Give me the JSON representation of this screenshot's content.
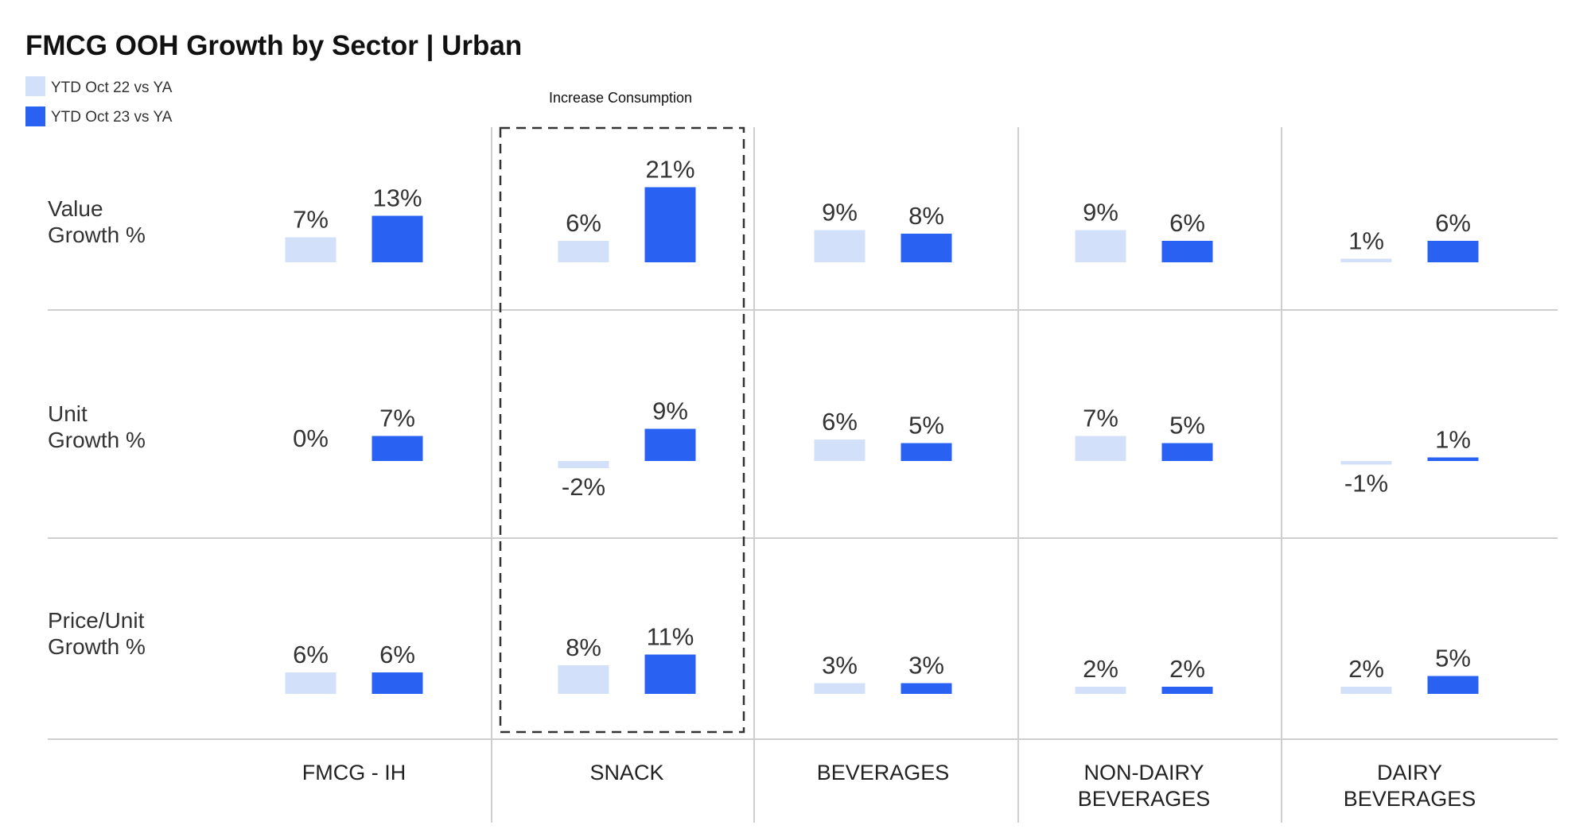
{
  "colors": {
    "ytd22": "#d3e0fa",
    "ytd23": "#2962f2",
    "grid": "#cfcfcf",
    "box": "#333333"
  },
  "chart_data": {
    "type": "bar",
    "title": "FMCG OOH Growth by Sector | Urban",
    "legend": [
      {
        "label": "YTD Oct 22 vs YA",
        "color": "#d3e0fa"
      },
      {
        "label": "YTD Oct 23 vs YA",
        "color": "#2962f2"
      }
    ],
    "legend_position": "top-left",
    "annotation": {
      "text": "Increase Consumption",
      "highlight_category": "SNACK"
    },
    "categories": [
      [
        "FMCG - IH"
      ],
      [
        "SNACK"
      ],
      [
        "BEVERAGES"
      ],
      [
        "NON-DAIRY",
        "BEVERAGES"
      ],
      [
        "DAIRY",
        "BEVERAGES"
      ]
    ],
    "metrics": [
      {
        "label": [
          "Value",
          "Growth %"
        ],
        "series": [
          {
            "name": "YTD Oct 22 vs YA",
            "values": [
              7,
              6,
              9,
              9,
              1
            ],
            "labels": [
              "7%",
              "6%",
              "9%",
              "9%",
              "1%"
            ]
          },
          {
            "name": "YTD Oct 23 vs YA",
            "values": [
              13,
              21,
              8,
              6,
              6
            ],
            "labels": [
              "13%",
              "21%",
              "8%",
              "6%",
              "6%"
            ]
          }
        ]
      },
      {
        "label": [
          "Unit",
          "Growth %"
        ],
        "series": [
          {
            "name": "YTD Oct 22 vs YA",
            "values": [
              0,
              -2,
              6,
              7,
              -1
            ],
            "labels": [
              "0%",
              "-2%",
              "6%",
              "7%",
              "-1%"
            ]
          },
          {
            "name": "YTD Oct 23 vs YA",
            "values": [
              7,
              9,
              5,
              5,
              1
            ],
            "labels": [
              "7%",
              "9%",
              "5%",
              "5%",
              "1%"
            ]
          }
        ]
      },
      {
        "label": [
          "Price/Unit",
          "Growth %"
        ],
        "series": [
          {
            "name": "YTD Oct 22 vs YA",
            "values": [
              6,
              8,
              3,
              2,
              2
            ],
            "labels": [
              "6%",
              "8%",
              "3%",
              "2%",
              "2%"
            ]
          },
          {
            "name": "YTD Oct 23 vs YA",
            "values": [
              6,
              11,
              3,
              2,
              5
            ],
            "labels": [
              "6%",
              "11%",
              "3%",
              "2%",
              "5%"
            ]
          }
        ]
      }
    ]
  }
}
